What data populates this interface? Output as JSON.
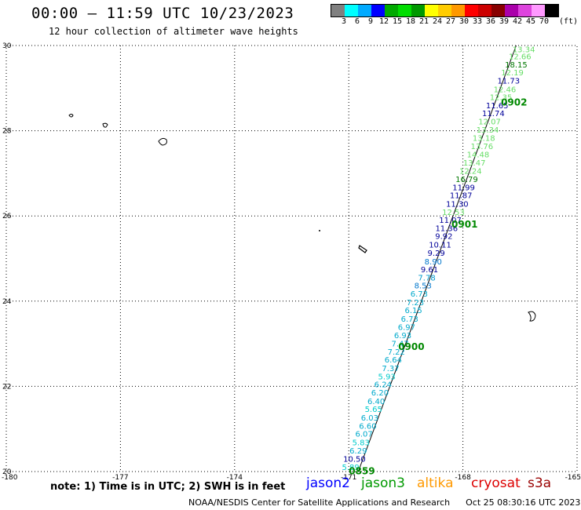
{
  "header": {
    "title": "00:00 – 11:59 UTC 10/23/2023",
    "subtitle": "12 hour collection of altimeter wave heights"
  },
  "legend": {
    "colors": [
      "#808080",
      "#00ffff",
      "#00aaff",
      "#0000ff",
      "#00aa00",
      "#00dd00",
      "#009900",
      "#ffff00",
      "#ffcc00",
      "#ff9900",
      "#ff0000",
      "#cc0000",
      "#880000",
      "#aa00aa",
      "#dd44dd",
      "#ff99ff",
      "#000000"
    ],
    "labels": [
      "3",
      "6",
      "9",
      "12",
      "15",
      "18",
      "21",
      "24",
      "27",
      "30",
      "33",
      "36",
      "39",
      "42",
      "45",
      "70"
    ],
    "unit": "(ft)"
  },
  "map": {
    "lon_range": [
      -180,
      -165
    ],
    "lat_range": [
      20,
      30
    ],
    "x_ticks": [
      "-180",
      "-177",
      "-174",
      "-171",
      "-168",
      "-165"
    ],
    "y_ticks": [
      "30",
      "28",
      "26",
      "24",
      "22",
      "20"
    ],
    "grid": "dotted"
  },
  "track": {
    "color": "#000000",
    "points": [
      {
        "lon": -170.75,
        "lat": 20.0
      },
      {
        "lon": -166.6,
        "lat": 30.0
      }
    ]
  },
  "observations": [
    {
      "v": "13.34",
      "lon": -166.4,
      "lat": 29.92,
      "c": "#66dd66"
    },
    {
      "v": "12.66",
      "lon": -166.5,
      "lat": 29.75,
      "c": "#66dd66"
    },
    {
      "v": "18.15",
      "lon": -166.6,
      "lat": 29.56,
      "c": "#007700"
    },
    {
      "v": "12.19",
      "lon": -166.7,
      "lat": 29.37,
      "c": "#66dd66"
    },
    {
      "v": "11.73",
      "lon": -166.8,
      "lat": 29.18,
      "c": "#000099"
    },
    {
      "v": "12.46",
      "lon": -166.9,
      "lat": 28.98,
      "c": "#66dd66"
    },
    {
      "v": "12.35",
      "lon": -167.0,
      "lat": 28.79,
      "c": "#66dd66"
    },
    {
      "v": "11.65",
      "lon": -167.1,
      "lat": 28.6,
      "c": "#000099"
    },
    {
      "v": "11.74",
      "lon": -167.2,
      "lat": 28.42,
      "c": "#000099"
    },
    {
      "v": "12.07",
      "lon": -167.3,
      "lat": 28.22,
      "c": "#66dd66"
    },
    {
      "v": "13.34",
      "lon": -167.35,
      "lat": 28.03,
      "c": "#66dd66"
    },
    {
      "v": "13.18",
      "lon": -167.45,
      "lat": 27.84,
      "c": "#66dd66"
    },
    {
      "v": "13.76",
      "lon": -167.5,
      "lat": 27.64,
      "c": "#66dd66"
    },
    {
      "v": "14.48",
      "lon": -167.6,
      "lat": 27.45,
      "c": "#66dd66"
    },
    {
      "v": "13.47",
      "lon": -167.7,
      "lat": 27.26,
      "c": "#66dd66"
    },
    {
      "v": "12.24",
      "lon": -167.8,
      "lat": 27.06,
      "c": "#66dd66"
    },
    {
      "v": "16.79",
      "lon": -167.9,
      "lat": 26.87,
      "c": "#007700"
    },
    {
      "v": "11.99",
      "lon": -167.98,
      "lat": 26.68,
      "c": "#000099"
    },
    {
      "v": "11.87",
      "lon": -168.05,
      "lat": 26.49,
      "c": "#000099"
    },
    {
      "v": "11.30",
      "lon": -168.15,
      "lat": 26.29,
      "c": "#000099"
    },
    {
      "v": "12.53",
      "lon": -168.25,
      "lat": 26.1,
      "c": "#66dd66"
    },
    {
      "v": "11.07",
      "lon": -168.33,
      "lat": 25.91,
      "c": "#000099"
    },
    {
      "v": "11.36",
      "lon": -168.43,
      "lat": 25.72,
      "c": "#000099"
    },
    {
      "v": "9.92",
      "lon": -168.5,
      "lat": 25.53,
      "c": "#000099"
    },
    {
      "v": "10.11",
      "lon": -168.6,
      "lat": 25.33,
      "c": "#000099"
    },
    {
      "v": "9.29",
      "lon": -168.7,
      "lat": 25.14,
      "c": "#000099"
    },
    {
      "v": "8.90",
      "lon": -168.78,
      "lat": 24.94,
      "c": "#0077cc"
    },
    {
      "v": "9.61",
      "lon": -168.88,
      "lat": 24.75,
      "c": "#000099"
    },
    {
      "v": "7.78",
      "lon": -168.95,
      "lat": 24.56,
      "c": "#0099cc"
    },
    {
      "v": "8.53",
      "lon": -169.05,
      "lat": 24.37,
      "c": "#0077cc"
    },
    {
      "v": "6.73",
      "lon": -169.15,
      "lat": 24.18,
      "c": "#00aacc"
    },
    {
      "v": "7.23",
      "lon": -169.25,
      "lat": 23.98,
      "c": "#00aacc"
    },
    {
      "v": "6.15",
      "lon": -169.3,
      "lat": 23.79,
      "c": "#00aacc"
    },
    {
      "v": "6.73",
      "lon": -169.4,
      "lat": 23.59,
      "c": "#00aacc"
    },
    {
      "v": "6.97",
      "lon": -169.48,
      "lat": 23.4,
      "c": "#00aacc"
    },
    {
      "v": "6.93",
      "lon": -169.58,
      "lat": 23.2,
      "c": "#00aacc"
    },
    {
      "v": "7.47",
      "lon": -169.65,
      "lat": 23.01,
      "c": "#00aacc"
    },
    {
      "v": "7.22",
      "lon": -169.75,
      "lat": 22.82,
      "c": "#00aacc"
    },
    {
      "v": "6.64",
      "lon": -169.83,
      "lat": 22.63,
      "c": "#00aacc"
    },
    {
      "v": "7.37",
      "lon": -169.9,
      "lat": 22.43,
      "c": "#00aacc"
    },
    {
      "v": "5.93",
      "lon": -170.0,
      "lat": 22.24,
      "c": "#00cccc"
    },
    {
      "v": "6.24",
      "lon": -170.1,
      "lat": 22.05,
      "c": "#00aacc"
    },
    {
      "v": "6.20",
      "lon": -170.18,
      "lat": 21.86,
      "c": "#00aacc"
    },
    {
      "v": "6.40",
      "lon": -170.28,
      "lat": 21.66,
      "c": "#00aacc"
    },
    {
      "v": "5.65",
      "lon": -170.35,
      "lat": 21.47,
      "c": "#00cccc"
    },
    {
      "v": "6.03",
      "lon": -170.45,
      "lat": 21.27,
      "c": "#00aacc"
    },
    {
      "v": "6.60",
      "lon": -170.5,
      "lat": 21.08,
      "c": "#00aacc"
    },
    {
      "v": "6.07",
      "lon": -170.6,
      "lat": 20.89,
      "c": "#00aacc"
    },
    {
      "v": "5.83",
      "lon": -170.68,
      "lat": 20.69,
      "c": "#00cccc"
    },
    {
      "v": "6.29",
      "lon": -170.75,
      "lat": 20.5,
      "c": "#00aacc"
    },
    {
      "v": "10.50",
      "lon": -170.85,
      "lat": 20.3,
      "c": "#000099"
    },
    {
      "v": "5.89",
      "lon": -170.95,
      "lat": 20.11,
      "c": "#00cccc"
    }
  ],
  "time_labels": [
    {
      "t": "0902",
      "lon": -167.0,
      "lat": 28.68
    },
    {
      "t": "0901",
      "lon": -168.3,
      "lat": 25.82
    },
    {
      "t": "0900",
      "lon": -169.7,
      "lat": 22.95
    },
    {
      "t": "0859",
      "lon": -171.0,
      "lat": 20.03
    }
  ],
  "note": "note: 1) Time is in UTC; 2) SWH is in feet",
  "satellites": [
    {
      "name": "jason2",
      "color": "#0000ff"
    },
    {
      "name": "jason3",
      "color": "#009900"
    },
    {
      "name": "altika",
      "color": "#ff9900"
    },
    {
      "name": "cryosat",
      "color": "#dd0000"
    },
    {
      "name": "s3a",
      "color": "#990000"
    }
  ],
  "footer": {
    "credit": "NOAA/NESDIS Center for Satellite Applications and Research",
    "timestamp": "Oct 25 08:30:16 UTC 2023"
  }
}
